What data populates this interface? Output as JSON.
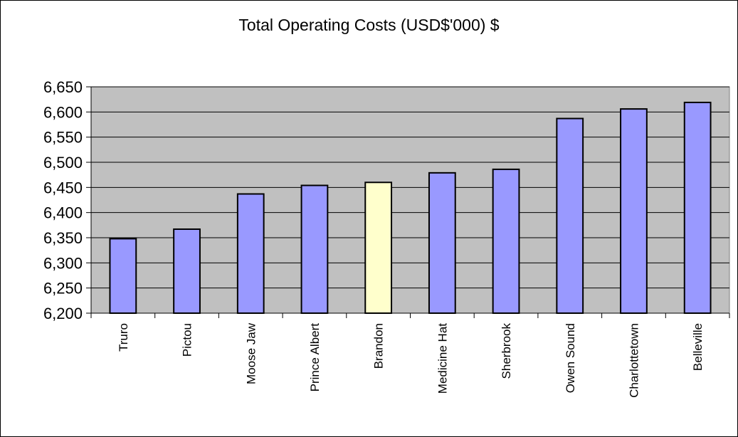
{
  "chart_data": {
    "type": "bar",
    "title": "Total Operating Costs (USD$'000) $",
    "xlabel": "",
    "ylabel": "",
    "categories": [
      "Truro",
      "Pictou",
      "Moose Jaw",
      "Prince Albert",
      "Brandon",
      "Medicine Hat",
      "Sherbrook",
      "Owen Sound",
      "Charlottetown",
      "Belleville"
    ],
    "values": [
      6348,
      6367,
      6437,
      6454,
      6460,
      6479,
      6486,
      6587,
      6606,
      6619
    ],
    "ylim": [
      6200,
      6650
    ],
    "yticks": [
      "6,200",
      "6,250",
      "6,300",
      "6,350",
      "6,400",
      "6,450",
      "6,500",
      "6,550",
      "6,600",
      "6,650"
    ],
    "grid": true,
    "legend": "none",
    "colors": {
      "plot_background": "#c0c0c0",
      "bar": "#9999ff",
      "highlight_bar": "#ffffcc",
      "highlight_category": "Brandon",
      "border": "#000000"
    }
  }
}
